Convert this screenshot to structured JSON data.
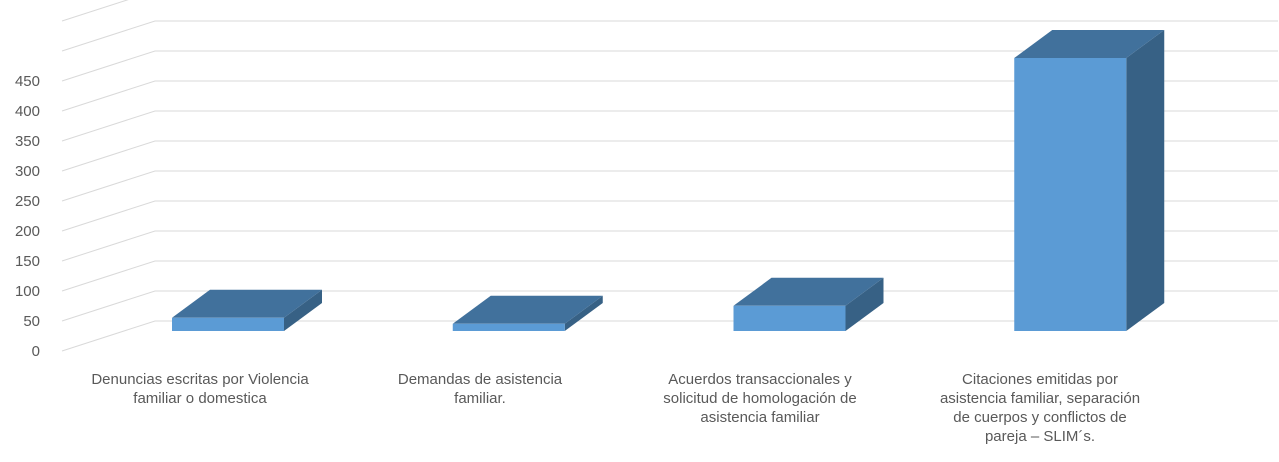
{
  "chart_data": {
    "type": "bar",
    "style": "3d-column",
    "categories": [
      "Denuncias escritas por Violencia familiar o domestica",
      "Demandas de asistencia familiar.",
      "Acuerdos transaccionales y solicitud de homologación de asistencia familiar",
      "Citaciones emitidas por asistencia familiar, separación de cuerpos y conflictos de pareja – SLIM´s."
    ],
    "category_label_lines": [
      [
        "Denuncias escritas por Violencia",
        "familiar o domestica"
      ],
      [
        "Demandas de asistencia",
        "familiar."
      ],
      [
        "Acuerdos transaccionales y",
        "solicitud de homologación de",
        "asistencia familiar"
      ],
      [
        "Citaciones emitidas por",
        "asistencia familiar, separación",
        "de cuerpos y conflictos de",
        "pareja – SLIM´s."
      ]
    ],
    "series": [
      {
        "values": [
          22,
          12,
          42,
          455
        ]
      }
    ],
    "ylim": [
      0,
      550
    ],
    "yticks": [
      0,
      50,
      100,
      150,
      200,
      250,
      300,
      350,
      400,
      450
    ],
    "grid": true,
    "legend": "none",
    "colors": {
      "bar_front": "#5b9bd5",
      "bar_top": "#41719c",
      "bar_side": "#376185",
      "grid": "#d9d9d9",
      "text": "#595959"
    }
  }
}
